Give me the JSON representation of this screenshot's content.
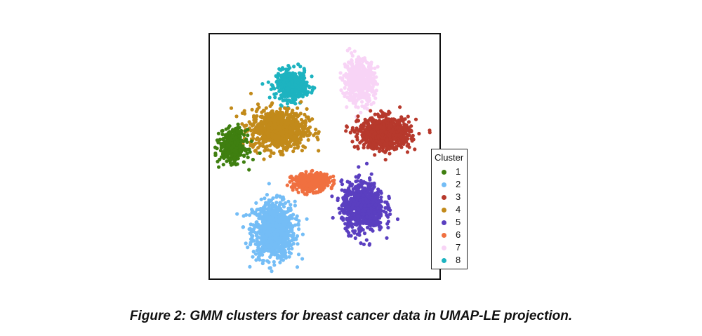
{
  "chart_data": {
    "type": "scatter",
    "legend_title": "Cluster",
    "legend_position": "right",
    "axes_visible": false,
    "series": [
      {
        "name": "1",
        "color": "#3F7F10",
        "center": [
          -3.6,
          0.7
        ],
        "spread": [
          0.45,
          0.55
        ],
        "n": 420
      },
      {
        "name": "2",
        "color": "#74BDF6",
        "center": [
          -2.0,
          -2.55
        ],
        "spread": [
          0.75,
          1.0
        ],
        "n": 900
      },
      {
        "name": "3",
        "color": "#B7392C",
        "center": [
          2.35,
          1.2
        ],
        "spread": [
          0.9,
          0.55
        ],
        "n": 850
      },
      {
        "name": "4",
        "color": "#C28A1A",
        "center": [
          -1.8,
          1.35
        ],
        "spread": [
          1.0,
          0.7
        ],
        "n": 800
      },
      {
        "name": "5",
        "color": "#5A3FC0",
        "center": [
          1.5,
          -1.65
        ],
        "spread": [
          0.75,
          0.85
        ],
        "n": 800
      },
      {
        "name": "6",
        "color": "#F07040",
        "center": [
          -0.55,
          -0.7
        ],
        "spread": [
          0.65,
          0.3
        ],
        "n": 420
      },
      {
        "name": "7",
        "color": "#F8D4F6",
        "center": [
          1.35,
          3.2
        ],
        "spread": [
          0.55,
          0.75
        ],
        "n": 500
      },
      {
        "name": "8",
        "color": "#1DB3C0",
        "center": [
          -1.3,
          3.05
        ],
        "spread": [
          0.55,
          0.5
        ],
        "n": 450
      }
    ],
    "xlim": [
      -4.5,
      4.5
    ],
    "ylim": [
      -4.4,
      5.0
    ]
  },
  "caption": "Figure 2: GMM clusters for breast cancer data in UMAP-LE projection."
}
